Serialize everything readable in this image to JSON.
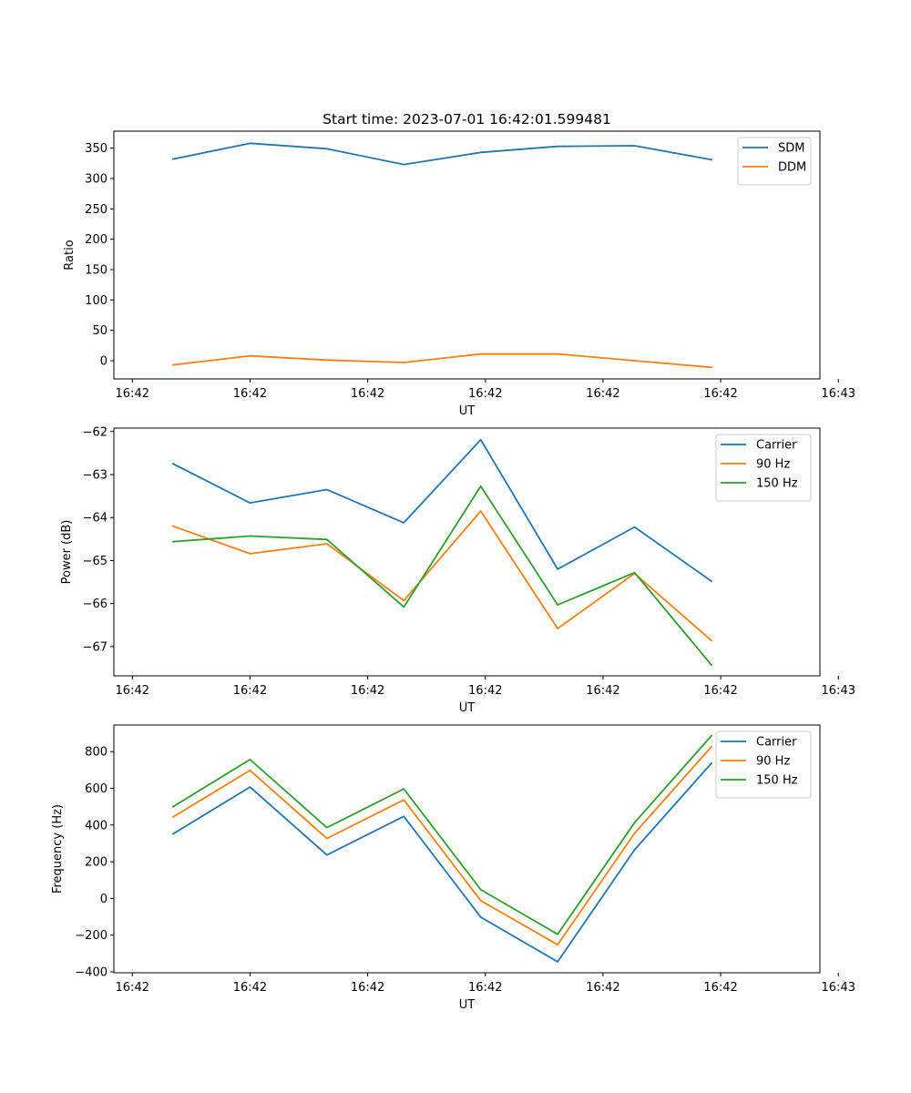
{
  "chart_data": [
    {
      "type": "line",
      "title": "Start time: 2023-07-01 16:42:01.599481",
      "xlabel": "UT",
      "ylabel": "Ratio",
      "x": [
        1,
        2,
        3,
        4,
        5,
        6,
        7,
        8
      ],
      "xlim": [
        0.23,
        9.41
      ],
      "xticks": [
        0.47,
        2.0,
        3.53,
        5.06,
        6.59,
        8.12,
        9.65
      ],
      "xtick_labels": [
        "16:42",
        "16:42",
        "16:42",
        "16:42",
        "16:42",
        "16:42",
        "16:43"
      ],
      "ylim": [
        -30,
        378
      ],
      "yticks": [
        0,
        50,
        100,
        150,
        200,
        250,
        300,
        350
      ],
      "ytick_labels": [
        "0",
        "50",
        "100",
        "150",
        "200",
        "250",
        "300",
        "350"
      ],
      "legend_position": "top-right",
      "series": [
        {
          "name": "SDM",
          "color": "#1f77b4",
          "values": [
            332,
            358,
            349,
            323,
            343,
            353,
            354,
            331
          ]
        },
        {
          "name": "DDM",
          "color": "#ff7f0e",
          "values": [
            -7,
            8,
            1,
            -3,
            11,
            11,
            0,
            -11
          ]
        }
      ]
    },
    {
      "type": "line",
      "title": "",
      "xlabel": "UT",
      "ylabel": "Power (dB)",
      "x": [
        1,
        2,
        3,
        4,
        5,
        6,
        7,
        8
      ],
      "xlim": [
        0.23,
        9.41
      ],
      "xticks": [
        0.47,
        2.0,
        3.53,
        5.06,
        6.59,
        8.12,
        9.65
      ],
      "xtick_labels": [
        "16:42",
        "16:42",
        "16:42",
        "16:42",
        "16:42",
        "16:42",
        "16:43"
      ],
      "ylim": [
        -67.68,
        -61.92
      ],
      "yticks": [
        -67,
        -66,
        -65,
        -64,
        -63,
        -62
      ],
      "ytick_labels": [
        "−67",
        "−66",
        "−65",
        "−64",
        "−63",
        "−62"
      ],
      "legend_position": "top-right",
      "series": [
        {
          "name": "Carrier",
          "color": "#1f77b4",
          "values": [
            -62.75,
            -63.66,
            -63.35,
            -64.12,
            -62.19,
            -65.2,
            -64.22,
            -65.48
          ]
        },
        {
          "name": "90 Hz",
          "color": "#ff7f0e",
          "values": [
            -64.2,
            -64.84,
            -64.61,
            -65.93,
            -63.85,
            -66.58,
            -65.3,
            -66.86
          ]
        },
        {
          "name": "150 Hz",
          "color": "#2ca02c",
          "values": [
            -64.56,
            -64.43,
            -64.51,
            -66.08,
            -63.27,
            -66.03,
            -65.28,
            -67.43
          ]
        }
      ]
    },
    {
      "type": "line",
      "title": "",
      "xlabel": "UT",
      "ylabel": "Frequency (Hz)",
      "x": [
        1,
        2,
        3,
        4,
        5,
        6,
        7,
        8
      ],
      "xlim": [
        0.23,
        9.41
      ],
      "xticks": [
        0.47,
        2.0,
        3.53,
        5.06,
        6.59,
        8.12,
        9.65
      ],
      "xtick_labels": [
        "16:42",
        "16:42",
        "16:42",
        "16:42",
        "16:42",
        "16:42",
        "16:43"
      ],
      "ylim": [
        -405,
        945
      ],
      "yticks": [
        -400,
        -200,
        0,
        200,
        400,
        600,
        800
      ],
      "ytick_labels": [
        "−400",
        "−200",
        "0",
        "200",
        "400",
        "600",
        "800"
      ],
      "legend_position": "top-right",
      "series": [
        {
          "name": "Carrier",
          "color": "#1f77b4",
          "values": [
            352,
            607,
            237,
            447,
            -102,
            -345,
            265,
            737
          ]
        },
        {
          "name": "90 Hz",
          "color": "#ff7f0e",
          "values": [
            444,
            698,
            327,
            537,
            -12,
            -252,
            355,
            827
          ]
        },
        {
          "name": "150 Hz",
          "color": "#2ca02c",
          "values": [
            500,
            757,
            386,
            597,
            48,
            -195,
            413,
            887
          ]
        }
      ]
    }
  ]
}
